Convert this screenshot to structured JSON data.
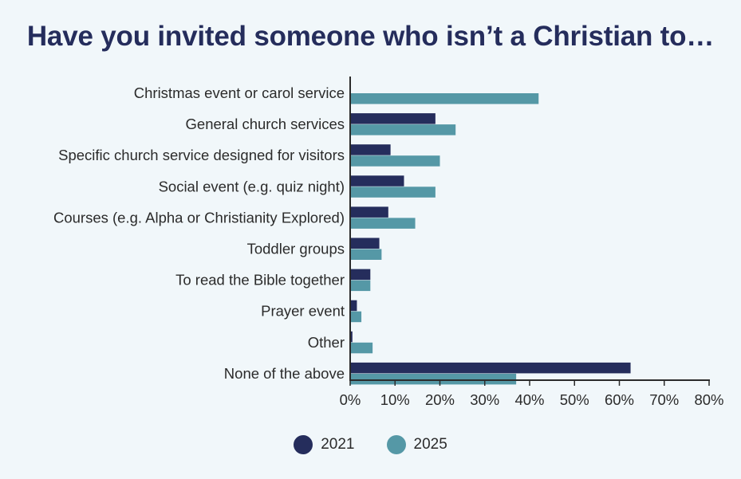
{
  "chart_data": {
    "type": "bar",
    "orientation": "horizontal",
    "title": "Have you invited someone who isn’t a Christian to…",
    "categories": [
      "Christmas event or carol service",
      "General church services",
      "Specific church service designed for visitors",
      "Social event (e.g. quiz night)",
      "Courses (e.g. Alpha or Christianity Explored)",
      "Toddler groups",
      "To read the Bible together",
      "Prayer event",
      "Other",
      "None of the above"
    ],
    "series": [
      {
        "name": "2021",
        "color": "#252d5c",
        "values": [
          0,
          19,
          9,
          12,
          8.5,
          6.5,
          4.5,
          1.5,
          0.5,
          62.5
        ]
      },
      {
        "name": "2025",
        "color": "#5598a6",
        "values": [
          42,
          23.5,
          20,
          19,
          14.5,
          7,
          4.5,
          2.5,
          5,
          37
        ]
      }
    ],
    "xlim": [
      0,
      80
    ],
    "xticks": [
      "0%",
      "10%",
      "20%",
      "30%",
      "40%",
      "50%",
      "60%",
      "70%",
      "80%"
    ],
    "xlabel": "",
    "ylabel": "",
    "legend_position": "bottom-center"
  }
}
